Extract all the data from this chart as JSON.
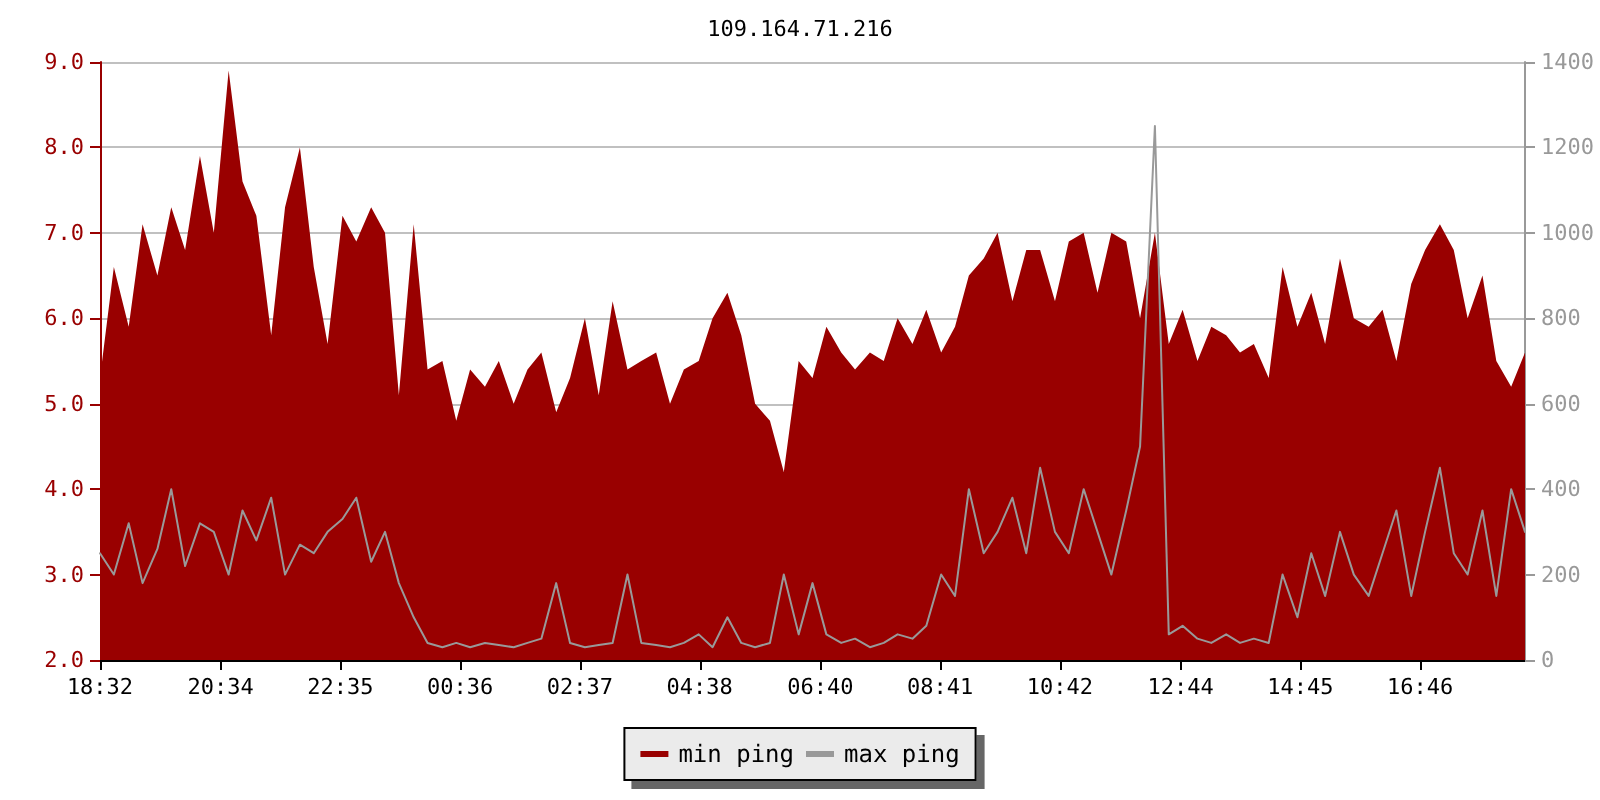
{
  "chart_data": {
    "type": "area",
    "title": "109.164.71.216",
    "xlim": [
      "--01-01T18:32",
      "--01-02T18:32"
    ],
    "xticks": [
      {
        "value": "--01-01T18:32",
        "label": "18:32"
      },
      {
        "value": "--01-01T20:34",
        "label": "20:34"
      },
      {
        "value": "--01-01T22:35",
        "label": "22:35"
      },
      {
        "value": "--01-02T00:36",
        "label": "00:36"
      },
      {
        "value": "--01-02T02:37",
        "label": "02:37"
      },
      {
        "value": "--01-02T04:38",
        "label": "04:38"
      },
      {
        "value": "--01-02T06:40",
        "label": "06:40"
      },
      {
        "value": "--01-02T08:41",
        "label": "08:41"
      },
      {
        "value": "--01-02T10:42",
        "label": "10:42"
      },
      {
        "value": "--01-02T12:44",
        "label": "12:44"
      },
      {
        "value": "--01-02T14:45",
        "label": "14:45"
      },
      {
        "value": "--01-02T16:46",
        "label": "16:46"
      }
    ],
    "ylim": [
      2,
      9
    ],
    "yticks": [
      {
        "value": 2,
        "label": "2.0"
      },
      {
        "value": 3,
        "label": "3.0"
      },
      {
        "value": 4,
        "label": "4.0"
      },
      {
        "value": 5,
        "label": "5.0"
      },
      {
        "value": 6,
        "label": "6.0"
      },
      {
        "value": 7,
        "label": "7.0"
      },
      {
        "value": 8,
        "label": "8.0"
      },
      {
        "value": 9,
        "label": "9.0"
      }
    ],
    "y2lim": [
      0,
      1400
    ],
    "y2ticks": [
      0,
      200,
      400,
      600,
      800,
      1000,
      1200,
      1400
    ],
    "grid": "y",
    "legend": "bottom",
    "marker": "none",
    "series": [
      {
        "name": "min ping",
        "color": "#990000",
        "values": [
          5.3,
          6.6,
          5.9,
          7.1,
          6.5,
          7.3,
          6.8,
          7.9,
          7.0,
          8.9,
          7.6,
          7.2,
          5.8,
          7.3,
          8.0,
          6.6,
          5.7,
          7.2,
          6.9,
          7.3,
          7.0,
          5.1,
          7.1,
          5.4,
          5.5,
          4.8,
          5.4,
          5.2,
          5.5,
          5.0,
          5.4,
          5.6,
          4.9,
          5.3,
          6.0,
          5.1,
          6.2,
          5.4,
          5.5,
          5.6,
          5.0,
          5.4,
          5.5,
          6.0,
          6.3,
          5.8,
          5.0,
          4.8,
          4.2,
          5.5,
          5.3,
          5.9,
          5.6,
          5.4,
          5.6,
          5.5,
          6.0,
          5.7,
          6.1,
          5.6,
          5.9,
          6.5,
          6.7,
          7.0,
          6.2,
          6.8,
          6.8,
          6.2,
          6.9,
          7.0,
          6.3,
          7.0,
          6.9,
          6.0,
          7.0,
          5.7,
          6.1,
          5.5,
          5.9,
          5.8,
          5.6,
          5.7,
          5.3,
          6.6,
          5.9,
          6.3,
          5.7,
          6.7,
          6.0,
          5.9,
          6.1,
          5.5,
          6.4,
          6.8,
          7.1,
          6.8,
          6.0,
          6.5,
          5.5,
          5.2,
          5.6
        ]
      },
      {
        "name": "max ping",
        "type": "line",
        "axis": "y2",
        "color": "#999999",
        "values": [
          250,
          200,
          320,
          180,
          260,
          400,
          220,
          320,
          300,
          200,
          350,
          280,
          380,
          200,
          270,
          250,
          300,
          330,
          380,
          230,
          300,
          180,
          100,
          40,
          30,
          40,
          30,
          40,
          35,
          30,
          40,
          50,
          180,
          40,
          30,
          35,
          40,
          200,
          40,
          35,
          30,
          40,
          60,
          30,
          100,
          40,
          30,
          40,
          200,
          60,
          180,
          60,
          40,
          50,
          30,
          40,
          60,
          50,
          80,
          200,
          150,
          400,
          250,
          300,
          380,
          250,
          450,
          300,
          250,
          400,
          300,
          200,
          350,
          500,
          1250,
          60,
          80,
          50,
          40,
          60,
          40,
          50,
          40,
          200,
          100,
          250,
          150,
          300,
          200,
          150,
          250,
          350,
          150,
          300,
          450,
          250,
          200,
          350,
          150,
          400,
          300
        ]
      }
    ],
    "x": [
      "--01-01T18:32",
      "--01-01T18:46",
      "--01-01T19:01",
      "--01-01T19:15",
      "--01-01T19:30",
      "--01-01T19:44",
      "--01-01T19:58",
      "--01-01T20:13",
      "--01-01T20:27",
      "--01-01T20:42",
      "--01-01T20:56",
      "--01-01T21:10",
      "--01-01T21:25",
      "--01-01T21:39",
      "--01-01T21:54",
      "--01-01T22:08",
      "--01-01T22:22",
      "--01-01T22:37",
      "--01-01T22:51",
      "--01-01T23:06",
      "--01-01T23:20",
      "--01-01T23:34",
      "--01-01T23:49",
      "--01-02T00:03",
      "--01-02T00:18",
      "--01-02T00:32",
      "--01-02T00:46",
      "--01-02T01:01",
      "--01-02T01:15",
      "--01-02T01:30",
      "--01-02T01:44",
      "--01-02T01:58",
      "--01-02T02:13",
      "--01-02T02:27",
      "--01-02T02:42",
      "--01-02T02:56",
      "--01-02T03:10",
      "--01-02T03:25",
      "--01-02T03:39",
      "--01-02T03:54",
      "--01-02T04:08",
      "--01-02T04:22",
      "--01-02T04:37",
      "--01-02T04:51",
      "--01-02T05:06",
      "--01-02T05:20",
      "--01-02T05:34",
      "--01-02T05:49",
      "--01-02T06:03",
      "--01-02T06:18",
      "--01-02T06:32",
      "--01-02T06:46",
      "--01-02T07:01",
      "--01-02T07:15",
      "--01-02T07:30",
      "--01-02T07:44",
      "--01-02T07:58",
      "--01-02T08:13",
      "--01-02T08:27",
      "--01-02T08:42",
      "--01-02T08:56",
      "--01-02T09:10",
      "--01-02T09:25",
      "--01-02T09:39",
      "--01-02T09:54",
      "--01-02T10:08",
      "--01-02T10:22",
      "--01-02T10:37",
      "--01-02T10:51",
      "--01-02T11:06",
      "--01-02T11:20",
      "--01-02T11:34",
      "--01-02T11:49",
      "--01-02T12:03",
      "--01-02T12:18",
      "--01-02T12:32",
      "--01-02T12:46",
      "--01-02T13:01",
      "--01-02T13:15",
      "--01-02T13:30",
      "--01-02T13:44",
      "--01-02T13:58",
      "--01-02T14:13",
      "--01-02T14:27",
      "--01-02T14:42",
      "--01-02T14:56",
      "--01-02T15:10",
      "--01-02T15:25",
      "--01-02T15:39",
      "--01-02T15:54",
      "--01-02T16:08",
      "--01-02T16:22",
      "--01-02T16:37",
      "--01-02T16:51",
      "--01-02T17:06",
      "--01-02T17:20",
      "--01-02T17:34",
      "--01-02T17:49",
      "--01-02T18:03",
      "--01-02T18:18",
      "--01-02T18:32"
    ]
  }
}
